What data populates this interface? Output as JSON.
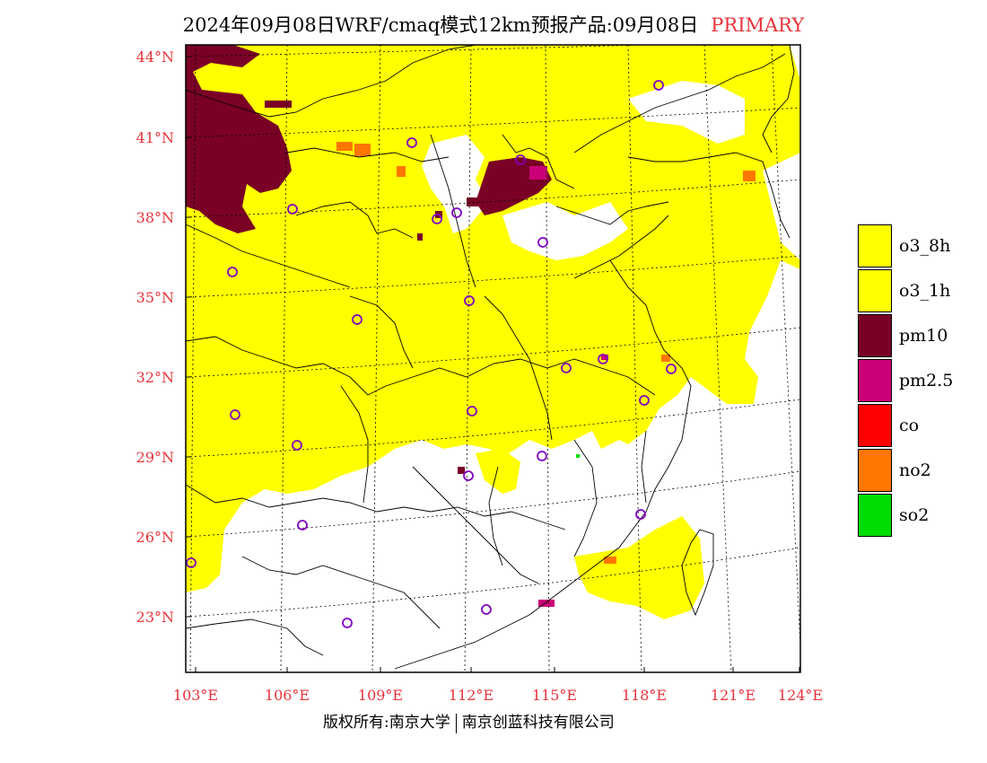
{
  "title": {
    "main": "2024年09月08日WRF/cmaq模式12km预报产品:09月08日",
    "tag": "PRIMARY"
  },
  "axes": {
    "x_ticks": [
      "103°E",
      "106°E",
      "109°E",
      "112°E",
      "115°E",
      "118°E",
      "121°E",
      "124°E"
    ],
    "y_ticks": [
      "44°N",
      "41°N",
      "38°N",
      "35°N",
      "32°N",
      "29°N",
      "26°N",
      "23°N"
    ]
  },
  "legend": [
    {
      "label": "o3_8h",
      "color": "#ffff00"
    },
    {
      "label": "o3_1h",
      "color": "#ffff00"
    },
    {
      "label": "pm10",
      "color": "#7a0026"
    },
    {
      "label": "pm2.5",
      "color": "#cc0077"
    },
    {
      "label": "co",
      "color": "#ff0000"
    },
    {
      "label": "no2",
      "color": "#ff7700"
    },
    {
      "label": "so2",
      "color": "#00dd00"
    }
  ],
  "footer": {
    "left": "版权所有:南京大学",
    "right": "南京创蓝科技有限公司"
  }
}
